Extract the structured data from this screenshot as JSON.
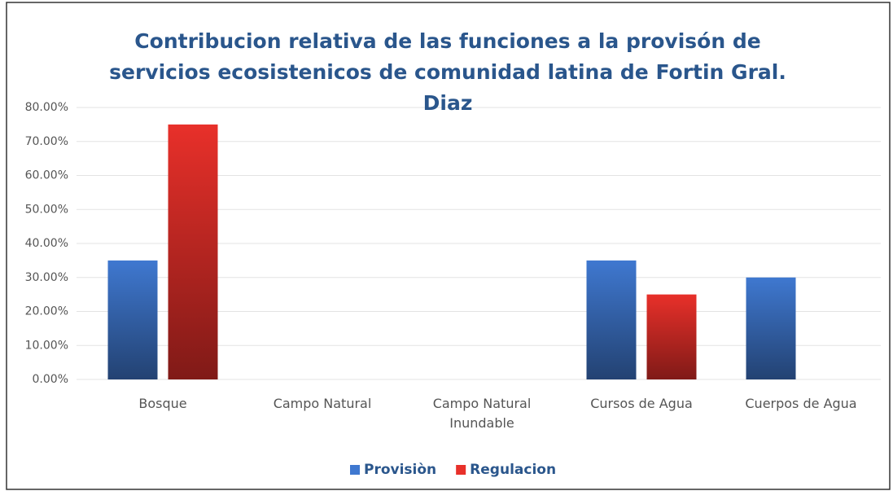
{
  "chart_data": {
    "type": "bar",
    "title": "Contribucion relativa de las funciones a la provisón de servicios ecosistenicos de comunidad latina de Fortin Gral. Diaz",
    "categories": [
      "Bosque",
      "Campo Natural",
      "Campo Natural Inundable",
      "Cursos de Agua",
      "Cuerpos de Agua"
    ],
    "series": [
      {
        "name": "Provisiòn",
        "color": "#3f78d0",
        "values": [
          35,
          0,
          0,
          35,
          30
        ]
      },
      {
        "name": "Regulacion",
        "color": "#e8302a",
        "values": [
          75,
          0,
          0,
          25,
          0
        ]
      }
    ],
    "ylim": [
      0,
      80
    ],
    "yticks": [
      {
        "value": 0,
        "label": "0.00%"
      },
      {
        "value": 10,
        "label": "10.00%"
      },
      {
        "value": 20,
        "label": "20.00%"
      },
      {
        "value": 30,
        "label": "30.00%"
      },
      {
        "value": 40,
        "label": "40.00%"
      },
      {
        "value": 50,
        "label": "50.00%"
      },
      {
        "value": 60,
        "label": "60.00%"
      },
      {
        "value": 70,
        "label": "70.00%"
      },
      {
        "value": 80,
        "label": "80.00%"
      }
    ],
    "grid": true,
    "legend": "bottom"
  }
}
